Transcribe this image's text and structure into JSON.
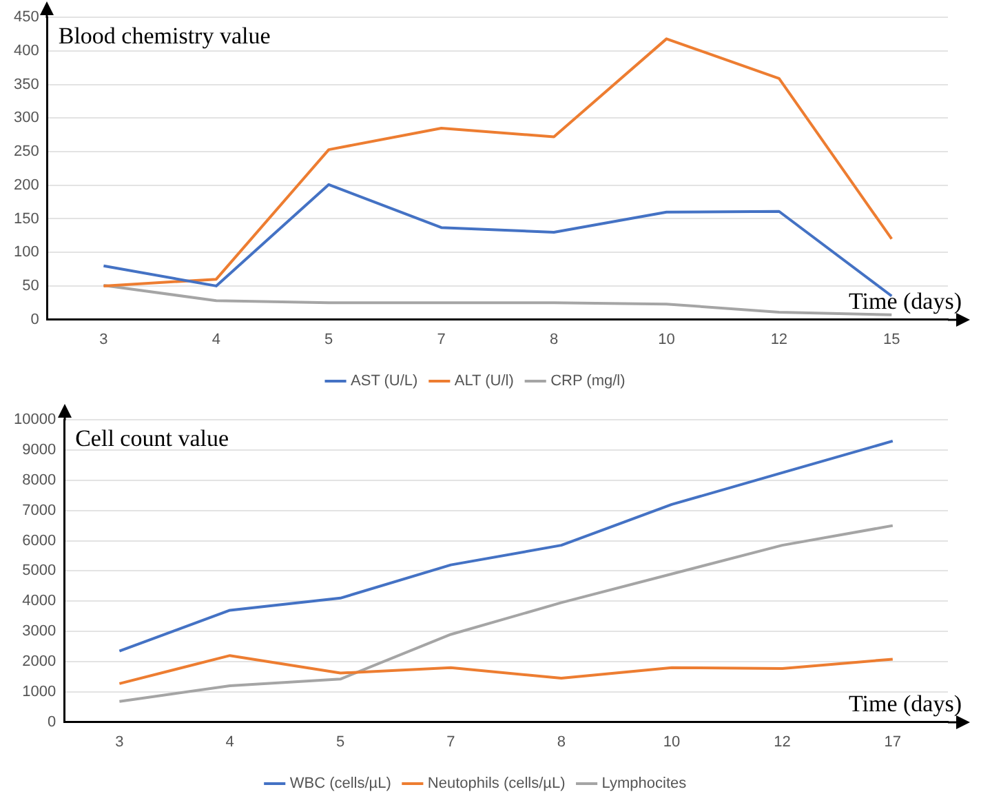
{
  "chart_data": [
    {
      "type": "line",
      "ylabel": "Blood chemistry value",
      "xlabel": "Time (days)",
      "categories": [
        "3",
        "4",
        "5",
        "7",
        "8",
        "10",
        "12",
        "15"
      ],
      "series": [
        {
          "name": "AST (U/L)",
          "color": "#4472c4",
          "values": [
            80,
            50,
            201,
            137,
            130,
            160,
            161,
            35
          ]
        },
        {
          "name": "ALT (U/l)",
          "color": "#ed7d31",
          "values": [
            50,
            60,
            253,
            285,
            272,
            418,
            359,
            120
          ]
        },
        {
          "name": "CRP (mg/l)",
          "color": "#a5a5a5",
          "values": [
            51,
            28,
            25,
            25,
            25,
            23,
            11,
            7
          ]
        }
      ],
      "ylim": [
        0,
        450
      ],
      "yticks": [
        0,
        50,
        100,
        150,
        200,
        250,
        300,
        350,
        400,
        450
      ],
      "grid": "y",
      "legend": "bottom",
      "marker": "none",
      "line_style": "solid"
    },
    {
      "type": "line",
      "ylabel": "Cell count value",
      "xlabel": "Time (days)",
      "categories": [
        "3",
        "4",
        "5",
        "7",
        "8",
        "10",
        "12",
        "17"
      ],
      "series": [
        {
          "name": "WBC (cells/µL)",
          "color": "#4472c4",
          "values": [
            2350,
            3700,
            4100,
            5200,
            5850,
            7200,
            8250,
            9300
          ]
        },
        {
          "name": "Neutophils (cells/µL)",
          "color": "#ed7d31",
          "values": [
            1270,
            2200,
            1620,
            1800,
            1450,
            1800,
            1770,
            2080
          ]
        },
        {
          "name": "Lymphocites",
          "color": "#a5a5a5",
          "values": [
            680,
            1200,
            1420,
            2900,
            3950,
            4900,
            5850,
            6500
          ]
        }
      ],
      "ylim": [
        0,
        10000
      ],
      "yticks": [
        0,
        1000,
        2000,
        3000,
        4000,
        5000,
        6000,
        7000,
        8000,
        9000,
        10000
      ],
      "grid": "y",
      "legend": "bottom",
      "marker": "none",
      "line_style": "solid"
    }
  ]
}
